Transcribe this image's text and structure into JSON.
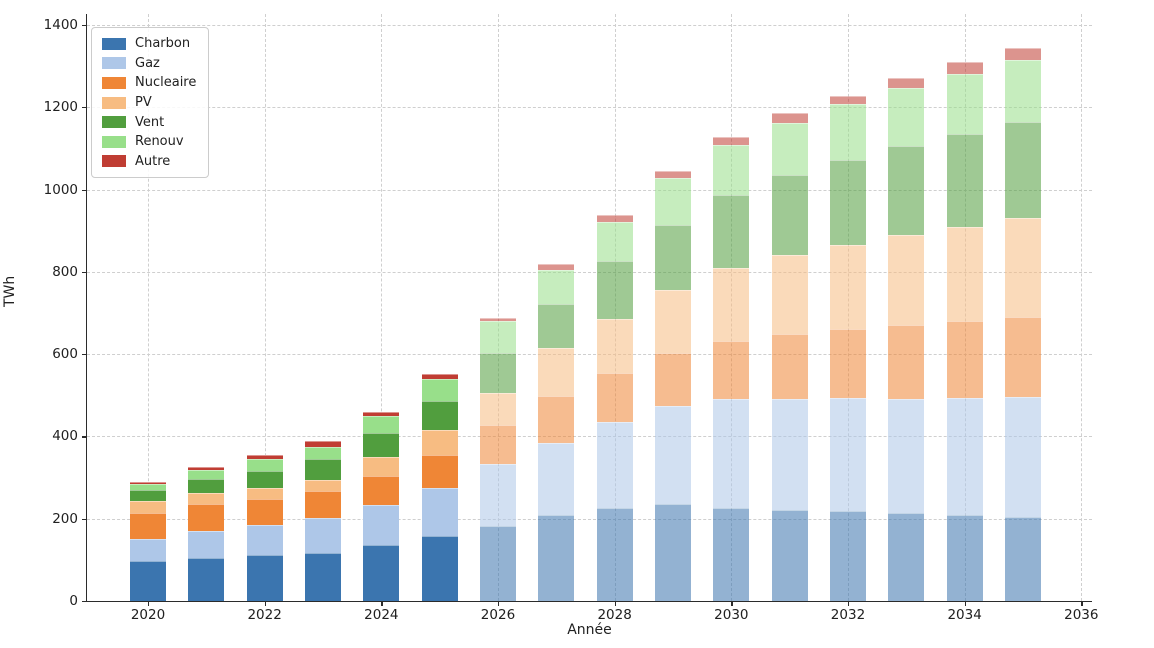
{
  "figure": {
    "background": "#ffffff",
    "text_color": "#212121",
    "grid_color": "#cfcfcf",
    "spine_color": "#2b2b2b"
  },
  "chart_data": {
    "type": "bar",
    "stacked": true,
    "title": "",
    "xlabel": "Année",
    "ylabel": "TWh",
    "categories": [
      2020,
      2021,
      2022,
      2023,
      2024,
      2025,
      2026,
      2027,
      2028,
      2029,
      2030,
      2031,
      2032,
      2033,
      2034,
      2035
    ],
    "series": [
      {
        "name": "Charbon",
        "color": "#3b75af",
        "values": [
          98,
          105,
          112,
          116,
          135,
          157,
          183,
          210,
          225,
          235,
          227,
          222,
          218,
          214,
          209,
          203
        ]
      },
      {
        "name": "Gaz",
        "color": "#aec7e8",
        "values": [
          52,
          65,
          72,
          85,
          98,
          118,
          150,
          175,
          210,
          238,
          263,
          270,
          275,
          278,
          284,
          292
        ]
      },
      {
        "name": "Nucleaire",
        "color": "#ef8636",
        "values": [
          65,
          65,
          65,
          67,
          72,
          80,
          94,
          113,
          118,
          130,
          142,
          158,
          167,
          178,
          187,
          195
        ]
      },
      {
        "name": "PV",
        "color": "#f7bc82",
        "values": [
          29,
          27,
          26,
          27,
          45,
          60,
          79,
          117,
          133,
          152,
          178,
          190,
          205,
          220,
          230,
          240
        ]
      },
      {
        "name": "Vent",
        "color": "#519e3e",
        "values": [
          26,
          34,
          40,
          50,
          58,
          70,
          97,
          106,
          141,
          160,
          176,
          196,
          206,
          215,
          224,
          235
        ]
      },
      {
        "name": "Renouv",
        "color": "#98df8a",
        "values": [
          14,
          23,
          31,
          29,
          42,
          55,
          77,
          84,
          93,
          112,
          123,
          126,
          136,
          141,
          146,
          151
        ]
      },
      {
        "name": "Autre",
        "color": "#c03d33",
        "values": [
          6,
          6,
          9,
          14,
          10,
          11,
          8,
          15,
          17,
          18,
          19,
          24,
          21,
          25,
          30,
          29
        ]
      }
    ],
    "totals": [
      290,
      325,
      355,
      388,
      460,
      551,
      688,
      820,
      937,
      1045,
      1128,
      1186,
      1228,
      1271,
      1310,
      1345
    ],
    "ylim": [
      0,
      1400
    ],
    "yticks": [
      0,
      200,
      400,
      600,
      800,
      1000,
      1200,
      1400
    ],
    "xticks": [
      2020,
      2022,
      2024,
      2026,
      2028,
      2030,
      2032,
      2034,
      2036
    ],
    "grid": "dashed",
    "legend_position": "upper-left",
    "legend_labels": [
      "Charbon",
      "Gaz",
      "Nucleaire",
      "PV",
      "Vent",
      "Renouv",
      "Autre"
    ],
    "forecast_start_category": 2026,
    "forecast_opacity": 0.55
  }
}
